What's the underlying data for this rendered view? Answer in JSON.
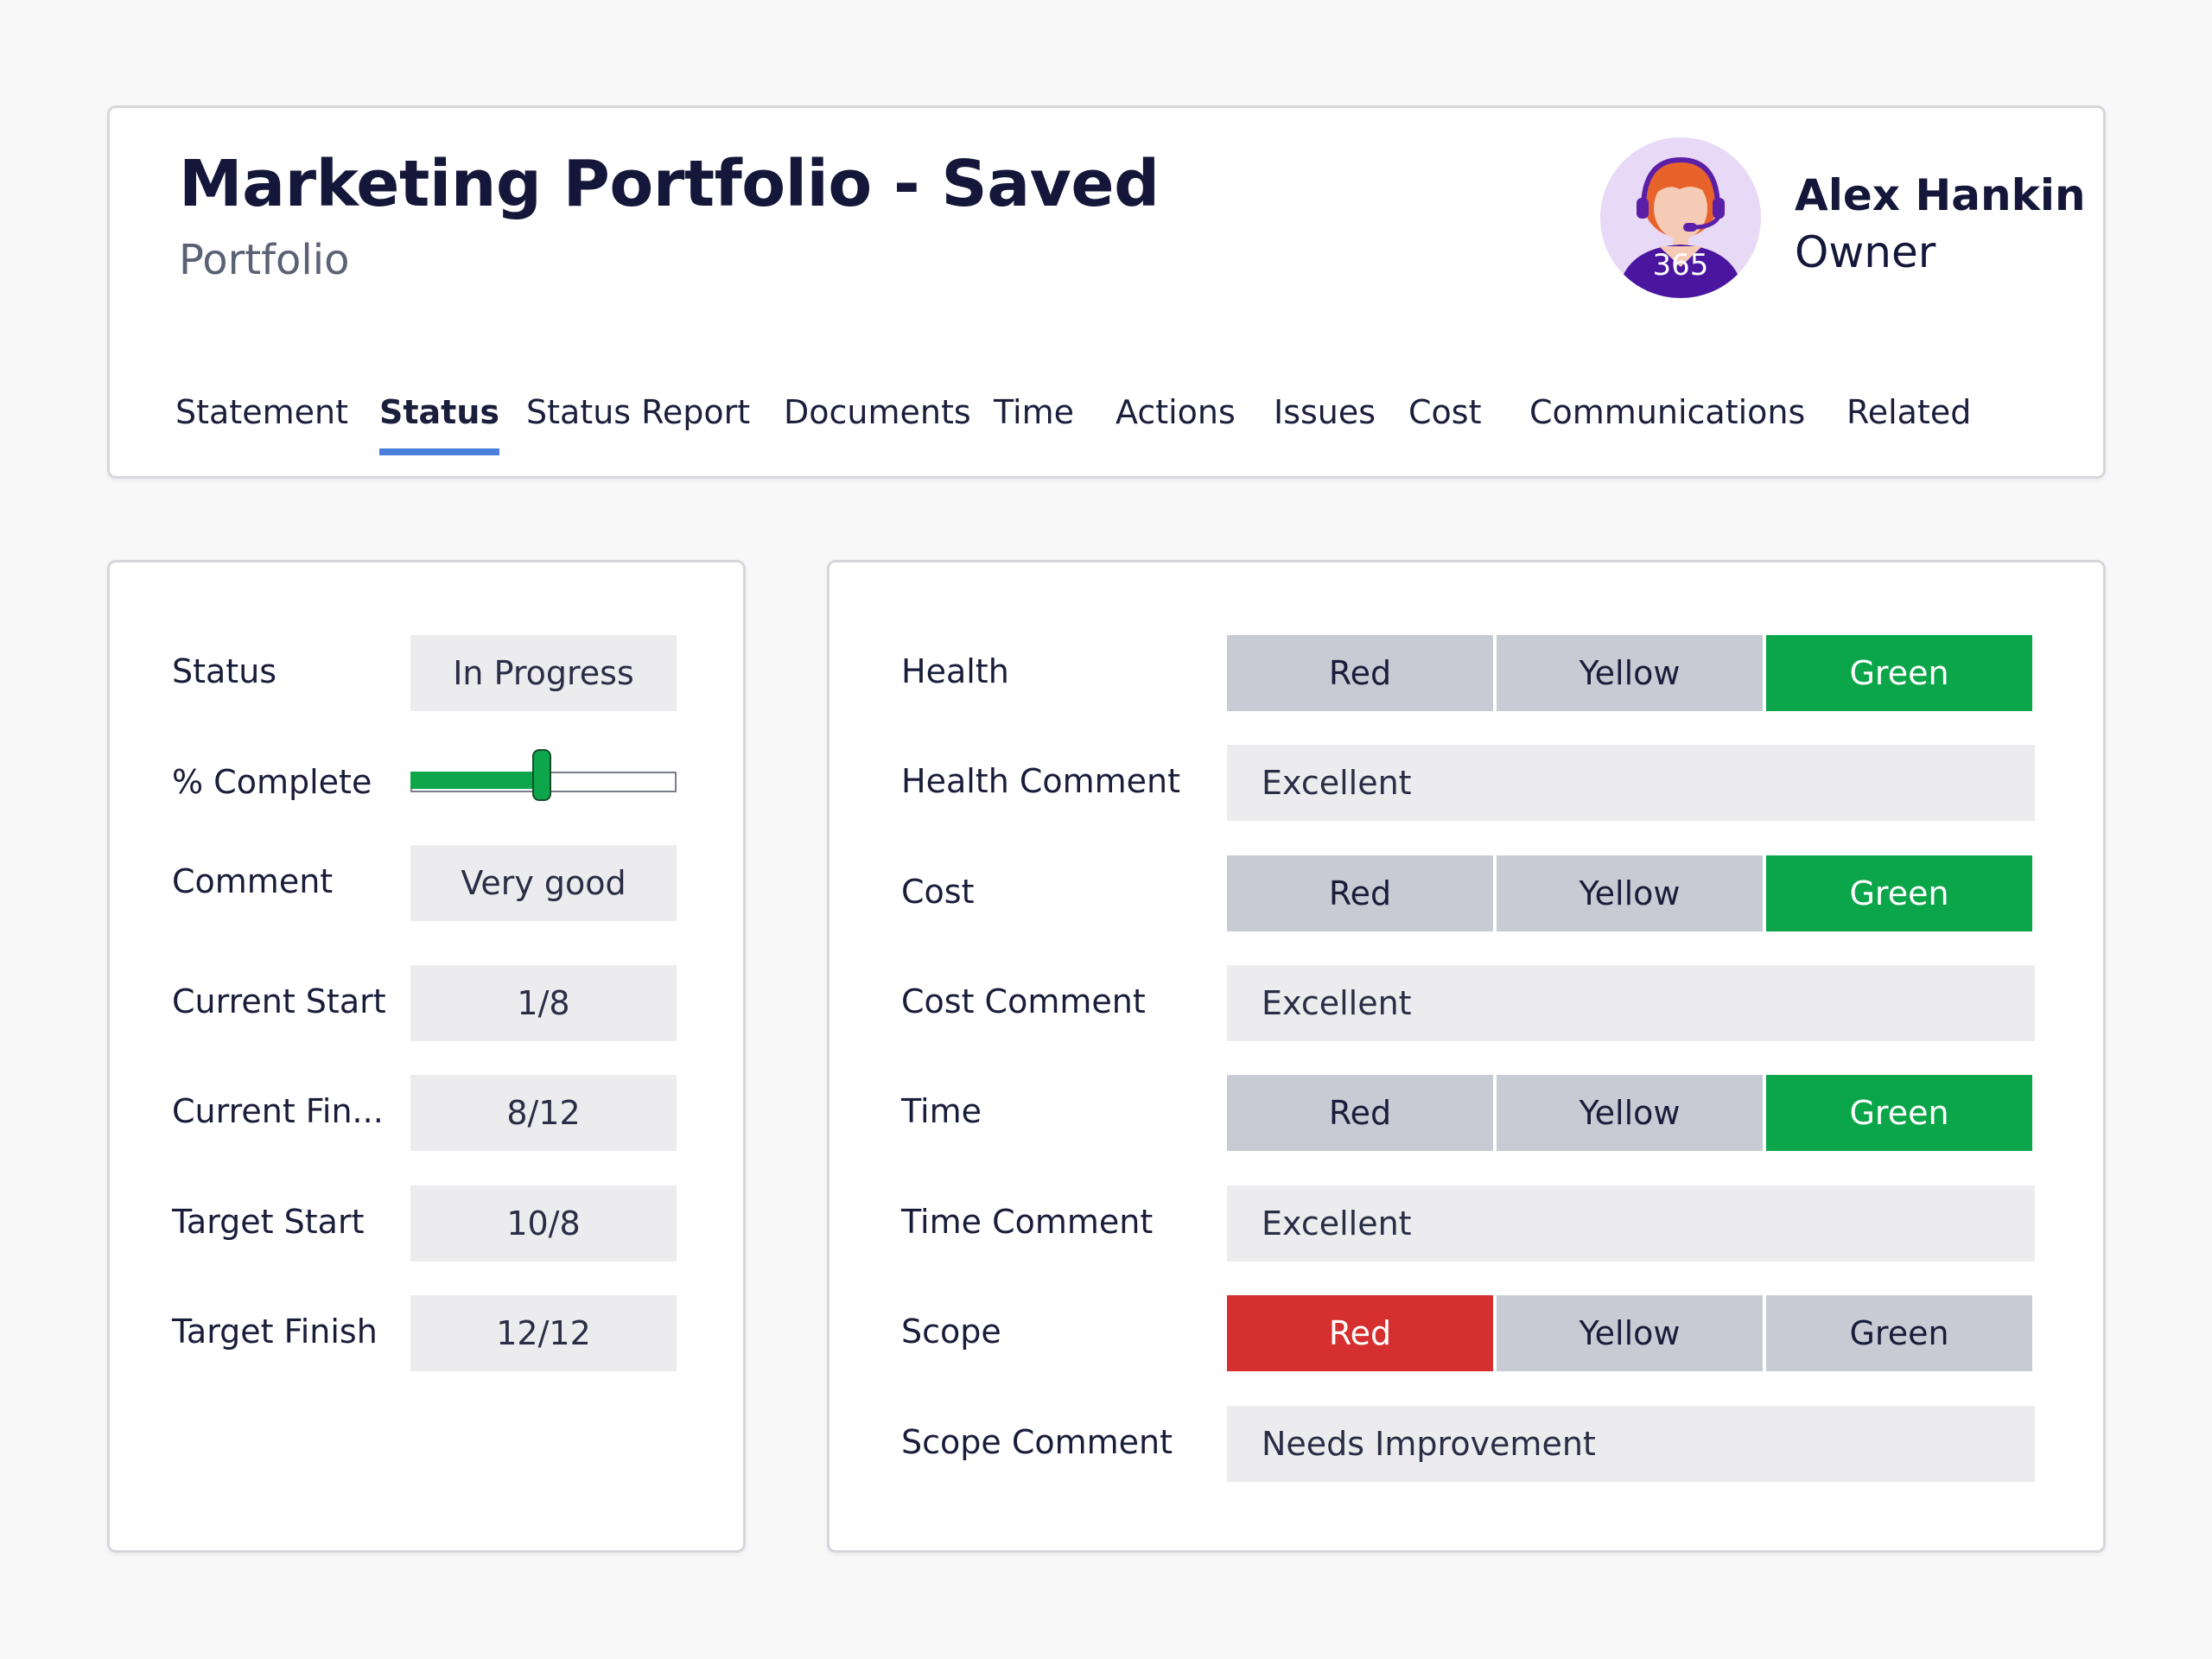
{
  "header": {
    "title": "Marketing Portfolio - Saved",
    "subtitle": "Portfolio",
    "owner_name": "Alex Hankin",
    "owner_role": "Owner",
    "avatar_badge": "365"
  },
  "tabs": [
    {
      "label": "Statement",
      "active": false
    },
    {
      "label": "Status",
      "active": true
    },
    {
      "label": "Status Report",
      "active": false
    },
    {
      "label": "Documents",
      "active": false
    },
    {
      "label": "Time",
      "active": false
    },
    {
      "label": "Actions",
      "active": false
    },
    {
      "label": "Issues",
      "active": false
    },
    {
      "label": "Cost",
      "active": false
    },
    {
      "label": "Communications",
      "active": false
    },
    {
      "label": "Related",
      "active": false
    }
  ],
  "status_panel": {
    "status_label": "Status",
    "status_value": "In Progress",
    "complete_label": "% Complete",
    "complete_fraction": 0.5,
    "comment_label": "Comment",
    "comment_value": "Very good",
    "current_start_label": "Current Start",
    "current_start_value": "1/8",
    "current_finish_label": "Current Fin...",
    "current_finish_value": "8/12",
    "target_start_label": "Target Start",
    "target_start_value": "10/8",
    "target_finish_label": "Target Finish",
    "target_finish_value": "12/12"
  },
  "rag_options": [
    "Red",
    "Yellow",
    "Green"
  ],
  "health_panel": {
    "health_label": "Health",
    "health_selected": "Green",
    "health_comment_label": "Health Comment",
    "health_comment_value": "Excellent",
    "cost_label": "Cost",
    "cost_selected": "Green",
    "cost_comment_label": "Cost Comment",
    "cost_comment_value": "Excellent",
    "time_label": "Time",
    "time_selected": "Green",
    "time_comment_label": "Time Comment",
    "time_comment_value": "Excellent",
    "scope_label": "Scope",
    "scope_selected": "Red",
    "scope_comment_label": "Scope Comment",
    "scope_comment_value": "Needs Improvement"
  },
  "colors": {
    "selected_green": "#0ca64a",
    "selected_red": "#d62f2f",
    "unselected": "#c8cbd3",
    "tab_underline": "#4a7fdc",
    "slider_fill": "#0ea64a"
  }
}
